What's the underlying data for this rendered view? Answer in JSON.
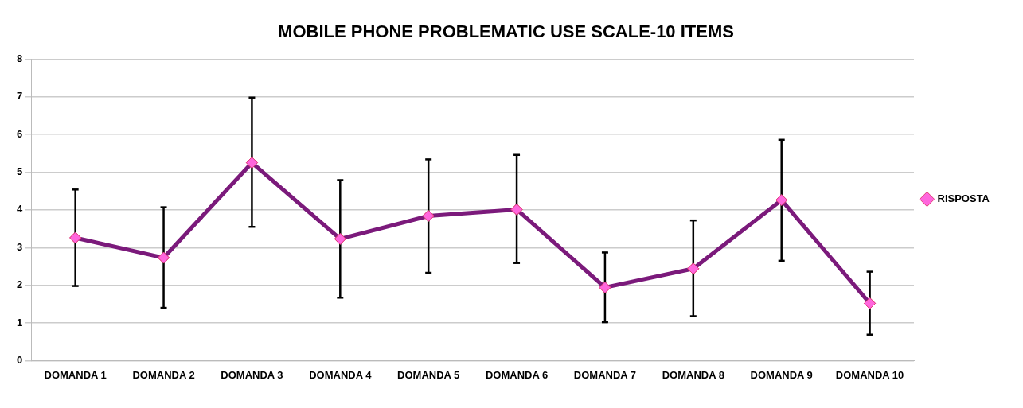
{
  "chart_data": {
    "type": "line",
    "title": "MOBILE PHONE PROBLEMATIC USE SCALE-10 ITEMS",
    "categories": [
      "DOMANDA 1",
      "DOMANDA 2",
      "DOMANDA 3",
      "DOMANDA 4",
      "DOMANDA 5",
      "DOMANDA 6",
      "DOMANDA 7",
      "DOMANDA 8",
      "DOMANDA 9",
      "DOMANDA 10"
    ],
    "series": [
      {
        "name": "RISPOSTA",
        "color": "#7b1a7b",
        "values": [
          3.26,
          2.73,
          5.25,
          3.23,
          3.84,
          4.01,
          1.94,
          2.44,
          4.26,
          1.52
        ],
        "errors": [
          [
            1.98,
            4.54
          ],
          [
            1.4,
            4.07
          ],
          [
            3.55,
            6.98
          ],
          [
            1.67,
            4.79
          ],
          [
            2.33,
            5.34
          ],
          [
            2.59,
            5.46
          ],
          [
            1.02,
            2.87
          ],
          [
            1.18,
            3.72
          ],
          [
            2.65,
            5.86
          ],
          [
            0.69,
            2.36
          ]
        ]
      }
    ],
    "ylim": [
      0,
      8
    ],
    "yticks": [
      0,
      1,
      2,
      3,
      4,
      5,
      6,
      7,
      8
    ],
    "grid": "y",
    "legend": "right",
    "marker": "diamond",
    "line_style": "solid"
  }
}
